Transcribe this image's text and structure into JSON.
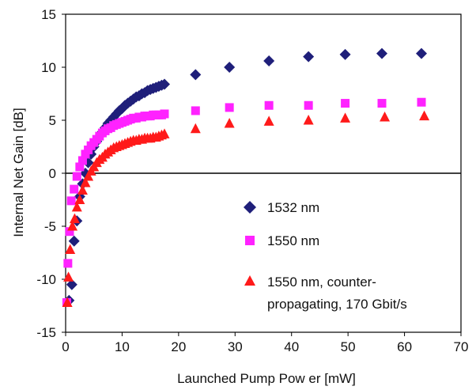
{
  "chart_data": {
    "type": "scatter",
    "title": "",
    "xlabel": "Launched Pump Pow er [mW]",
    "ylabel": "Internal Net Gain [dB]",
    "xlim": [
      0,
      70
    ],
    "ylim": [
      -15,
      15
    ],
    "xticks": [
      "0",
      "10",
      "20",
      "30",
      "40",
      "50",
      "60",
      "70"
    ],
    "yticks": [
      "15",
      "10",
      "5",
      "0",
      "-5",
      "-10",
      "-15"
    ],
    "zero_line": true,
    "grid": false,
    "legend_position": "inside-right",
    "legend_text": {
      "s1": "1532 nm",
      "s2": "1550 nm",
      "s3_line1": "1550 nm, counter-",
      "s3_line2": "propagating, 170 Gbit/s"
    },
    "series": [
      {
        "name": "1532 nm",
        "marker": "diamond",
        "color": "#1f1f7a",
        "points": [
          [
            0.6,
            -12.0
          ],
          [
            1.1,
            -10.5
          ],
          [
            1.5,
            -6.4
          ],
          [
            2.0,
            -4.5
          ],
          [
            2.5,
            -2.2
          ],
          [
            3.0,
            -1.0
          ],
          [
            3.5,
            0.0
          ],
          [
            4.0,
            1.0
          ],
          [
            4.5,
            1.8
          ],
          [
            5.0,
            2.5
          ],
          [
            5.5,
            3.0
          ],
          [
            6.0,
            3.5
          ],
          [
            6.5,
            3.9
          ],
          [
            7.0,
            4.3
          ],
          [
            7.5,
            4.7
          ],
          [
            8.0,
            5.0
          ],
          [
            8.5,
            5.3
          ],
          [
            9.0,
            5.6
          ],
          [
            9.5,
            5.9
          ],
          [
            10.0,
            6.1
          ],
          [
            10.5,
            6.4
          ],
          [
            11.0,
            6.6
          ],
          [
            11.5,
            6.8
          ],
          [
            12.0,
            7.0
          ],
          [
            12.5,
            7.2
          ],
          [
            13.0,
            7.3
          ],
          [
            13.5,
            7.5
          ],
          [
            14.0,
            7.6
          ],
          [
            14.5,
            7.8
          ],
          [
            15.0,
            7.9
          ],
          [
            15.5,
            8.0
          ],
          [
            16.0,
            8.1
          ],
          [
            16.5,
            8.2
          ],
          [
            17.0,
            8.3
          ],
          [
            17.5,
            8.4
          ],
          [
            23.0,
            9.3
          ],
          [
            29.0,
            10.0
          ],
          [
            36.0,
            10.6
          ],
          [
            43.0,
            11.0
          ],
          [
            49.5,
            11.2
          ],
          [
            56.0,
            11.3
          ],
          [
            63.0,
            11.3
          ]
        ]
      },
      {
        "name": "1550 nm",
        "marker": "square",
        "color": "#ff22ff",
        "points": [
          [
            0.2,
            -12.2
          ],
          [
            0.4,
            -8.5
          ],
          [
            0.7,
            -5.5
          ],
          [
            1.0,
            -2.6
          ],
          [
            1.5,
            -1.5
          ],
          [
            2.0,
            -0.3
          ],
          [
            2.5,
            0.6
          ],
          [
            3.0,
            1.2
          ],
          [
            3.5,
            1.8
          ],
          [
            4.0,
            2.2
          ],
          [
            4.5,
            2.6
          ],
          [
            5.0,
            2.9
          ],
          [
            5.5,
            3.2
          ],
          [
            6.0,
            3.5
          ],
          [
            6.5,
            3.8
          ],
          [
            7.0,
            4.0
          ],
          [
            7.5,
            4.2
          ],
          [
            8.0,
            4.3
          ],
          [
            8.5,
            4.5
          ],
          [
            9.0,
            4.6
          ],
          [
            9.5,
            4.7
          ],
          [
            10.0,
            4.8
          ],
          [
            10.5,
            4.9
          ],
          [
            11.0,
            5.0
          ],
          [
            11.5,
            5.1
          ],
          [
            12.0,
            5.2
          ],
          [
            12.5,
            5.2
          ],
          [
            13.0,
            5.3
          ],
          [
            13.5,
            5.3
          ],
          [
            14.0,
            5.4
          ],
          [
            14.5,
            5.4
          ],
          [
            15.0,
            5.4
          ],
          [
            15.5,
            5.5
          ],
          [
            16.0,
            5.5
          ],
          [
            16.5,
            5.5
          ],
          [
            17.0,
            5.5
          ],
          [
            17.5,
            5.6
          ],
          [
            23.0,
            5.9
          ],
          [
            29.0,
            6.2
          ],
          [
            36.0,
            6.4
          ],
          [
            43.0,
            6.4
          ],
          [
            49.5,
            6.6
          ],
          [
            56.0,
            6.6
          ],
          [
            63.0,
            6.7
          ]
        ]
      },
      {
        "name": "1550 nm, counter-propagating, 170 Gbit/s",
        "marker": "triangle",
        "color": "#ff1a1a",
        "points": [
          [
            0.3,
            -12.2
          ],
          [
            0.5,
            -9.8
          ],
          [
            0.8,
            -7.2
          ],
          [
            1.2,
            -5.0
          ],
          [
            1.6,
            -4.3
          ],
          [
            2.0,
            -3.2
          ],
          [
            2.5,
            -2.5
          ],
          [
            3.0,
            -1.6
          ],
          [
            3.5,
            -0.9
          ],
          [
            4.0,
            -0.3
          ],
          [
            4.5,
            0.2
          ],
          [
            5.0,
            0.6
          ],
          [
            5.5,
            1.0
          ],
          [
            6.0,
            1.3
          ],
          [
            6.5,
            1.5
          ],
          [
            7.0,
            1.8
          ],
          [
            7.5,
            2.0
          ],
          [
            8.0,
            2.2
          ],
          [
            8.5,
            2.4
          ],
          [
            9.0,
            2.5
          ],
          [
            9.5,
            2.6
          ],
          [
            10.0,
            2.7
          ],
          [
            10.5,
            2.8
          ],
          [
            11.0,
            2.9
          ],
          [
            11.5,
            3.0
          ],
          [
            12.0,
            3.1
          ],
          [
            12.5,
            3.1
          ],
          [
            13.0,
            3.2
          ],
          [
            13.5,
            3.2
          ],
          [
            14.0,
            3.3
          ],
          [
            14.5,
            3.3
          ],
          [
            15.0,
            3.3
          ],
          [
            15.5,
            3.4
          ],
          [
            16.0,
            3.4
          ],
          [
            16.5,
            3.5
          ],
          [
            17.0,
            3.6
          ],
          [
            17.5,
            3.7
          ],
          [
            23.0,
            4.2
          ],
          [
            29.0,
            4.7
          ],
          [
            36.0,
            4.9
          ],
          [
            43.0,
            5.0
          ],
          [
            49.5,
            5.2
          ],
          [
            56.5,
            5.3
          ],
          [
            63.5,
            5.4
          ]
        ]
      }
    ]
  }
}
